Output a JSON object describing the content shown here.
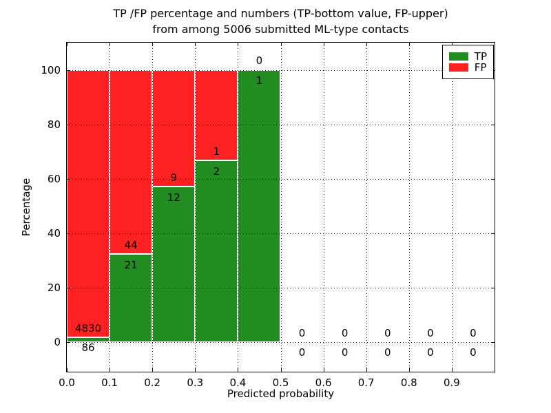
{
  "figure": {
    "title_line1": "TP /FP percentage and numbers (TP-bottom value, FP-upper)",
    "title_line2": "from among 5006 submitted ML-type contacts"
  },
  "chart_data": {
    "type": "bar",
    "stacked": true,
    "title": "TP /FP percentage and numbers (TP-bottom value, FP-upper) from among 5006 submitted ML-type contacts",
    "xlabel": "Predicted probability",
    "ylabel": "Percentage",
    "xlim": [
      0.0,
      1.0
    ],
    "ylim": [
      -11,
      110
    ],
    "grid": true,
    "total_submitted_contacts": 5006,
    "x_tick_labels": [
      "0.0",
      "0.1",
      "0.2",
      "0.3",
      "0.4",
      "0.5",
      "0.6",
      "0.7",
      "0.8",
      "0.9"
    ],
    "y_tick_values": [
      0,
      20,
      40,
      60,
      80,
      100
    ],
    "legend": {
      "position": "upper right",
      "entries": [
        {
          "label": "TP",
          "color": "#228b22"
        },
        {
          "label": "FP",
          "color": "#ff2222"
        }
      ]
    },
    "colors": {
      "tp": "#228b22",
      "fp": "#ff2222",
      "grid": "#000000",
      "bar_edge": "#ffffff",
      "background": "#ffffff"
    },
    "bins": [
      {
        "x_start": 0.0,
        "x_end": 0.1,
        "tp_count": 86,
        "fp_count": 4830,
        "tp_percent": 1.75,
        "fp_percent": 98.25,
        "has_bar": true
      },
      {
        "x_start": 0.1,
        "x_end": 0.2,
        "tp_count": 21,
        "fp_count": 44,
        "tp_percent": 32.31,
        "fp_percent": 67.69,
        "has_bar": true
      },
      {
        "x_start": 0.2,
        "x_end": 0.3,
        "tp_count": 12,
        "fp_count": 9,
        "tp_percent": 57.14,
        "fp_percent": 42.86,
        "has_bar": true
      },
      {
        "x_start": 0.3,
        "x_end": 0.4,
        "tp_count": 2,
        "fp_count": 1,
        "tp_percent": 66.67,
        "fp_percent": 33.33,
        "has_bar": true
      },
      {
        "x_start": 0.4,
        "x_end": 0.5,
        "tp_count": 1,
        "fp_count": 0,
        "tp_percent": 100.0,
        "fp_percent": 0.0,
        "has_bar": true
      },
      {
        "x_start": 0.5,
        "x_end": 0.6,
        "tp_count": 0,
        "fp_count": 0,
        "tp_percent": 0.0,
        "fp_percent": 0.0,
        "has_bar": false
      },
      {
        "x_start": 0.6,
        "x_end": 0.7,
        "tp_count": 0,
        "fp_count": 0,
        "tp_percent": 0.0,
        "fp_percent": 0.0,
        "has_bar": false
      },
      {
        "x_start": 0.7,
        "x_end": 0.8,
        "tp_count": 0,
        "fp_count": 0,
        "tp_percent": 0.0,
        "fp_percent": 0.0,
        "has_bar": false
      },
      {
        "x_start": 0.8,
        "x_end": 0.9,
        "tp_count": 0,
        "fp_count": 0,
        "tp_percent": 0.0,
        "fp_percent": 0.0,
        "has_bar": false
      },
      {
        "x_start": 0.9,
        "x_end": 1.0,
        "tp_count": 0,
        "fp_count": 0,
        "tp_percent": 0.0,
        "fp_percent": 0.0,
        "has_bar": false
      }
    ]
  }
}
